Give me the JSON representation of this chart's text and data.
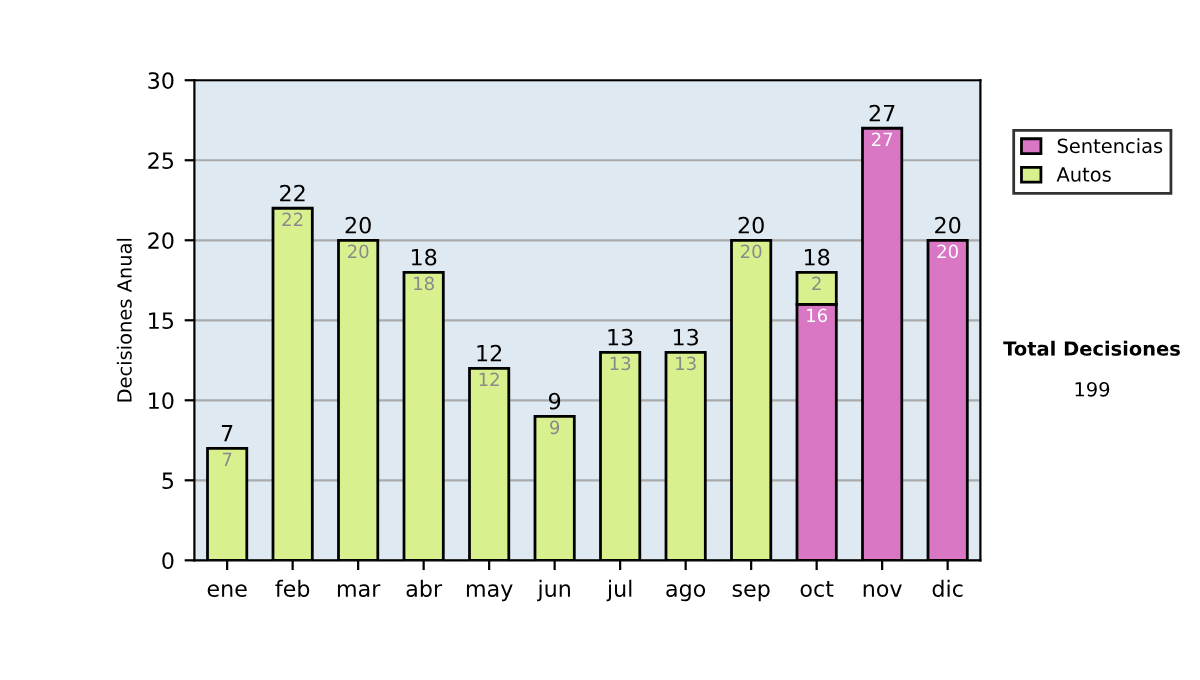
{
  "chart_data": {
    "type": "bar",
    "stacked": true,
    "ylabel": "Decisiones Anual",
    "categories": [
      "ene",
      "feb",
      "mar",
      "abr",
      "may",
      "jun",
      "jul",
      "ago",
      "sep",
      "oct",
      "nov",
      "dic"
    ],
    "series": [
      {
        "name": "Sentencias",
        "color": "#d977c4",
        "values": [
          null,
          null,
          null,
          null,
          null,
          null,
          null,
          null,
          null,
          16,
          27,
          20
        ]
      },
      {
        "name": "Autos",
        "color": "#d8f08e",
        "values": [
          7,
          22,
          20,
          18,
          12,
          9,
          13,
          13,
          20,
          2,
          null,
          null
        ]
      }
    ],
    "ylim": [
      0,
      30
    ],
    "yticks": [
      0,
      5,
      10,
      15,
      20,
      25,
      30
    ],
    "grid": "y",
    "legend": "right",
    "data_labels": true,
    "totals": [
      "7",
      "22",
      "20",
      "18",
      "12",
      "9",
      "13",
      "13",
      "20",
      "18",
      "27",
      "20"
    ],
    "annotations": [
      "Total Decisiones",
      "199"
    ]
  }
}
